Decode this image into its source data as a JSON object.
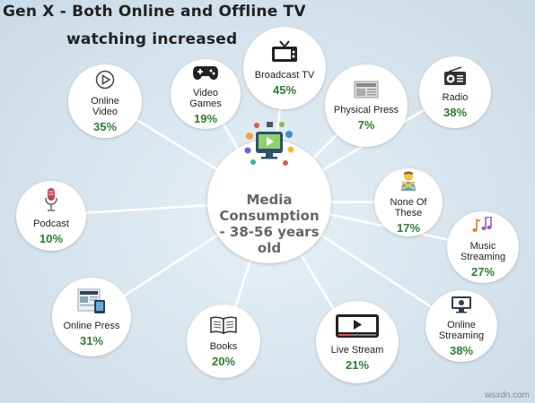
{
  "header": {
    "title_line_1": "Gen X - Both Online and Offline TV",
    "title_line_2": "watching increased"
  },
  "center": {
    "label": "Media\nConsumption\n- 38-56 years\nold"
  },
  "nodes": [
    {
      "id": "broadcast-tv",
      "label": "Broadcast TV",
      "value": "45%",
      "icon": "tv-icon"
    },
    {
      "id": "video-games",
      "label": "Video\nGames",
      "value": "19%",
      "icon": "gamepad-icon"
    },
    {
      "id": "online-video",
      "label": "Online\nVideo",
      "value": "35%",
      "icon": "play-icon"
    },
    {
      "id": "physical-press",
      "label": "Physical Press",
      "value": "7%",
      "icon": "newspaper-icon"
    },
    {
      "id": "radio",
      "label": "Radio",
      "value": "38%",
      "icon": "radio-icon"
    },
    {
      "id": "none-of-these",
      "label": "None Of\nThese",
      "value": "17%",
      "icon": "person-shrug-icon"
    },
    {
      "id": "podcast",
      "label": "Podcast",
      "value": "10%",
      "icon": "microphone-icon"
    },
    {
      "id": "music-streaming",
      "label": "Music\nStreaming",
      "value": "27%",
      "icon": "music-notes-icon"
    },
    {
      "id": "online-press",
      "label": "Online Press",
      "value": "31%",
      "icon": "tablet-news-icon"
    },
    {
      "id": "books",
      "label": "Books",
      "value": "20%",
      "icon": "book-icon"
    },
    {
      "id": "live-stream",
      "label": "Live Stream",
      "value": "21%",
      "icon": "video-player-icon"
    },
    {
      "id": "online-streaming",
      "label": "Online\nStreaming",
      "value": "38%",
      "icon": "monitor-icon"
    }
  ],
  "footer": {
    "watermark": "wsxdn.com"
  },
  "colors": {
    "value": "#2e7d32",
    "title": "#222222",
    "center_text": "#666666",
    "background": "#d6e4ee"
  }
}
